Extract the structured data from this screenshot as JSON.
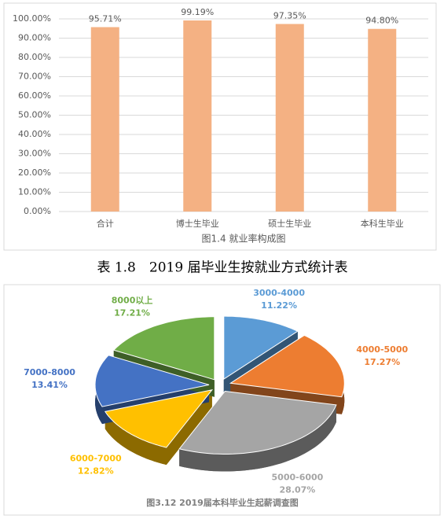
{
  "chart_data": [
    {
      "type": "bar",
      "title": "图1.4 就业率构成图",
      "categories": [
        "合计",
        "博士生毕业",
        "硕士生毕业",
        "本科生毕业"
      ],
      "values": [
        95.71,
        99.19,
        97.35,
        94.8
      ],
      "value_labels": [
        "95.71%",
        "99.19%",
        "97.35%",
        "94.80%"
      ],
      "color": "#f4b183",
      "ylim": [
        0,
        100
      ],
      "yticks": [
        {
          "value": 0,
          "label": "0.00%"
        },
        {
          "value": 10,
          "label": "10.00%"
        },
        {
          "value": 20,
          "label": "20.00%"
        },
        {
          "value": 30,
          "label": "30.00%"
        },
        {
          "value": 40,
          "label": "40.00%"
        },
        {
          "value": 50,
          "label": "50.00%"
        },
        {
          "value": 60,
          "label": "60.00%"
        },
        {
          "value": 70,
          "label": "70.00%"
        },
        {
          "value": 80,
          "label": "80.00%"
        },
        {
          "value": 90,
          "label": "90.00%"
        },
        {
          "value": 100,
          "label": "100.00%"
        }
      ],
      "grid": true
    },
    {
      "type": "pie",
      "title": "图3.12 2019届本科毕业生起薪调查图",
      "categories": [
        "3000-4000",
        "4000-5000",
        "5000-6000",
        "6000-7000",
        "7000-8000",
        "8000以上"
      ],
      "values": [
        11.22,
        17.27,
        28.07,
        12.82,
        13.41,
        17.21
      ],
      "value_labels": [
        "11.22%",
        "17.27%",
        "28.07%",
        "12.82%",
        "13.41%",
        "17.21%"
      ],
      "colors": [
        "#5b9bd5",
        "#ed7d31",
        "#a5a5a5",
        "#ffc000",
        "#4472c4",
        "#70ad47"
      ]
    }
  ],
  "caption": "表 1.8　2019 届毕业生按就业方式统计表"
}
